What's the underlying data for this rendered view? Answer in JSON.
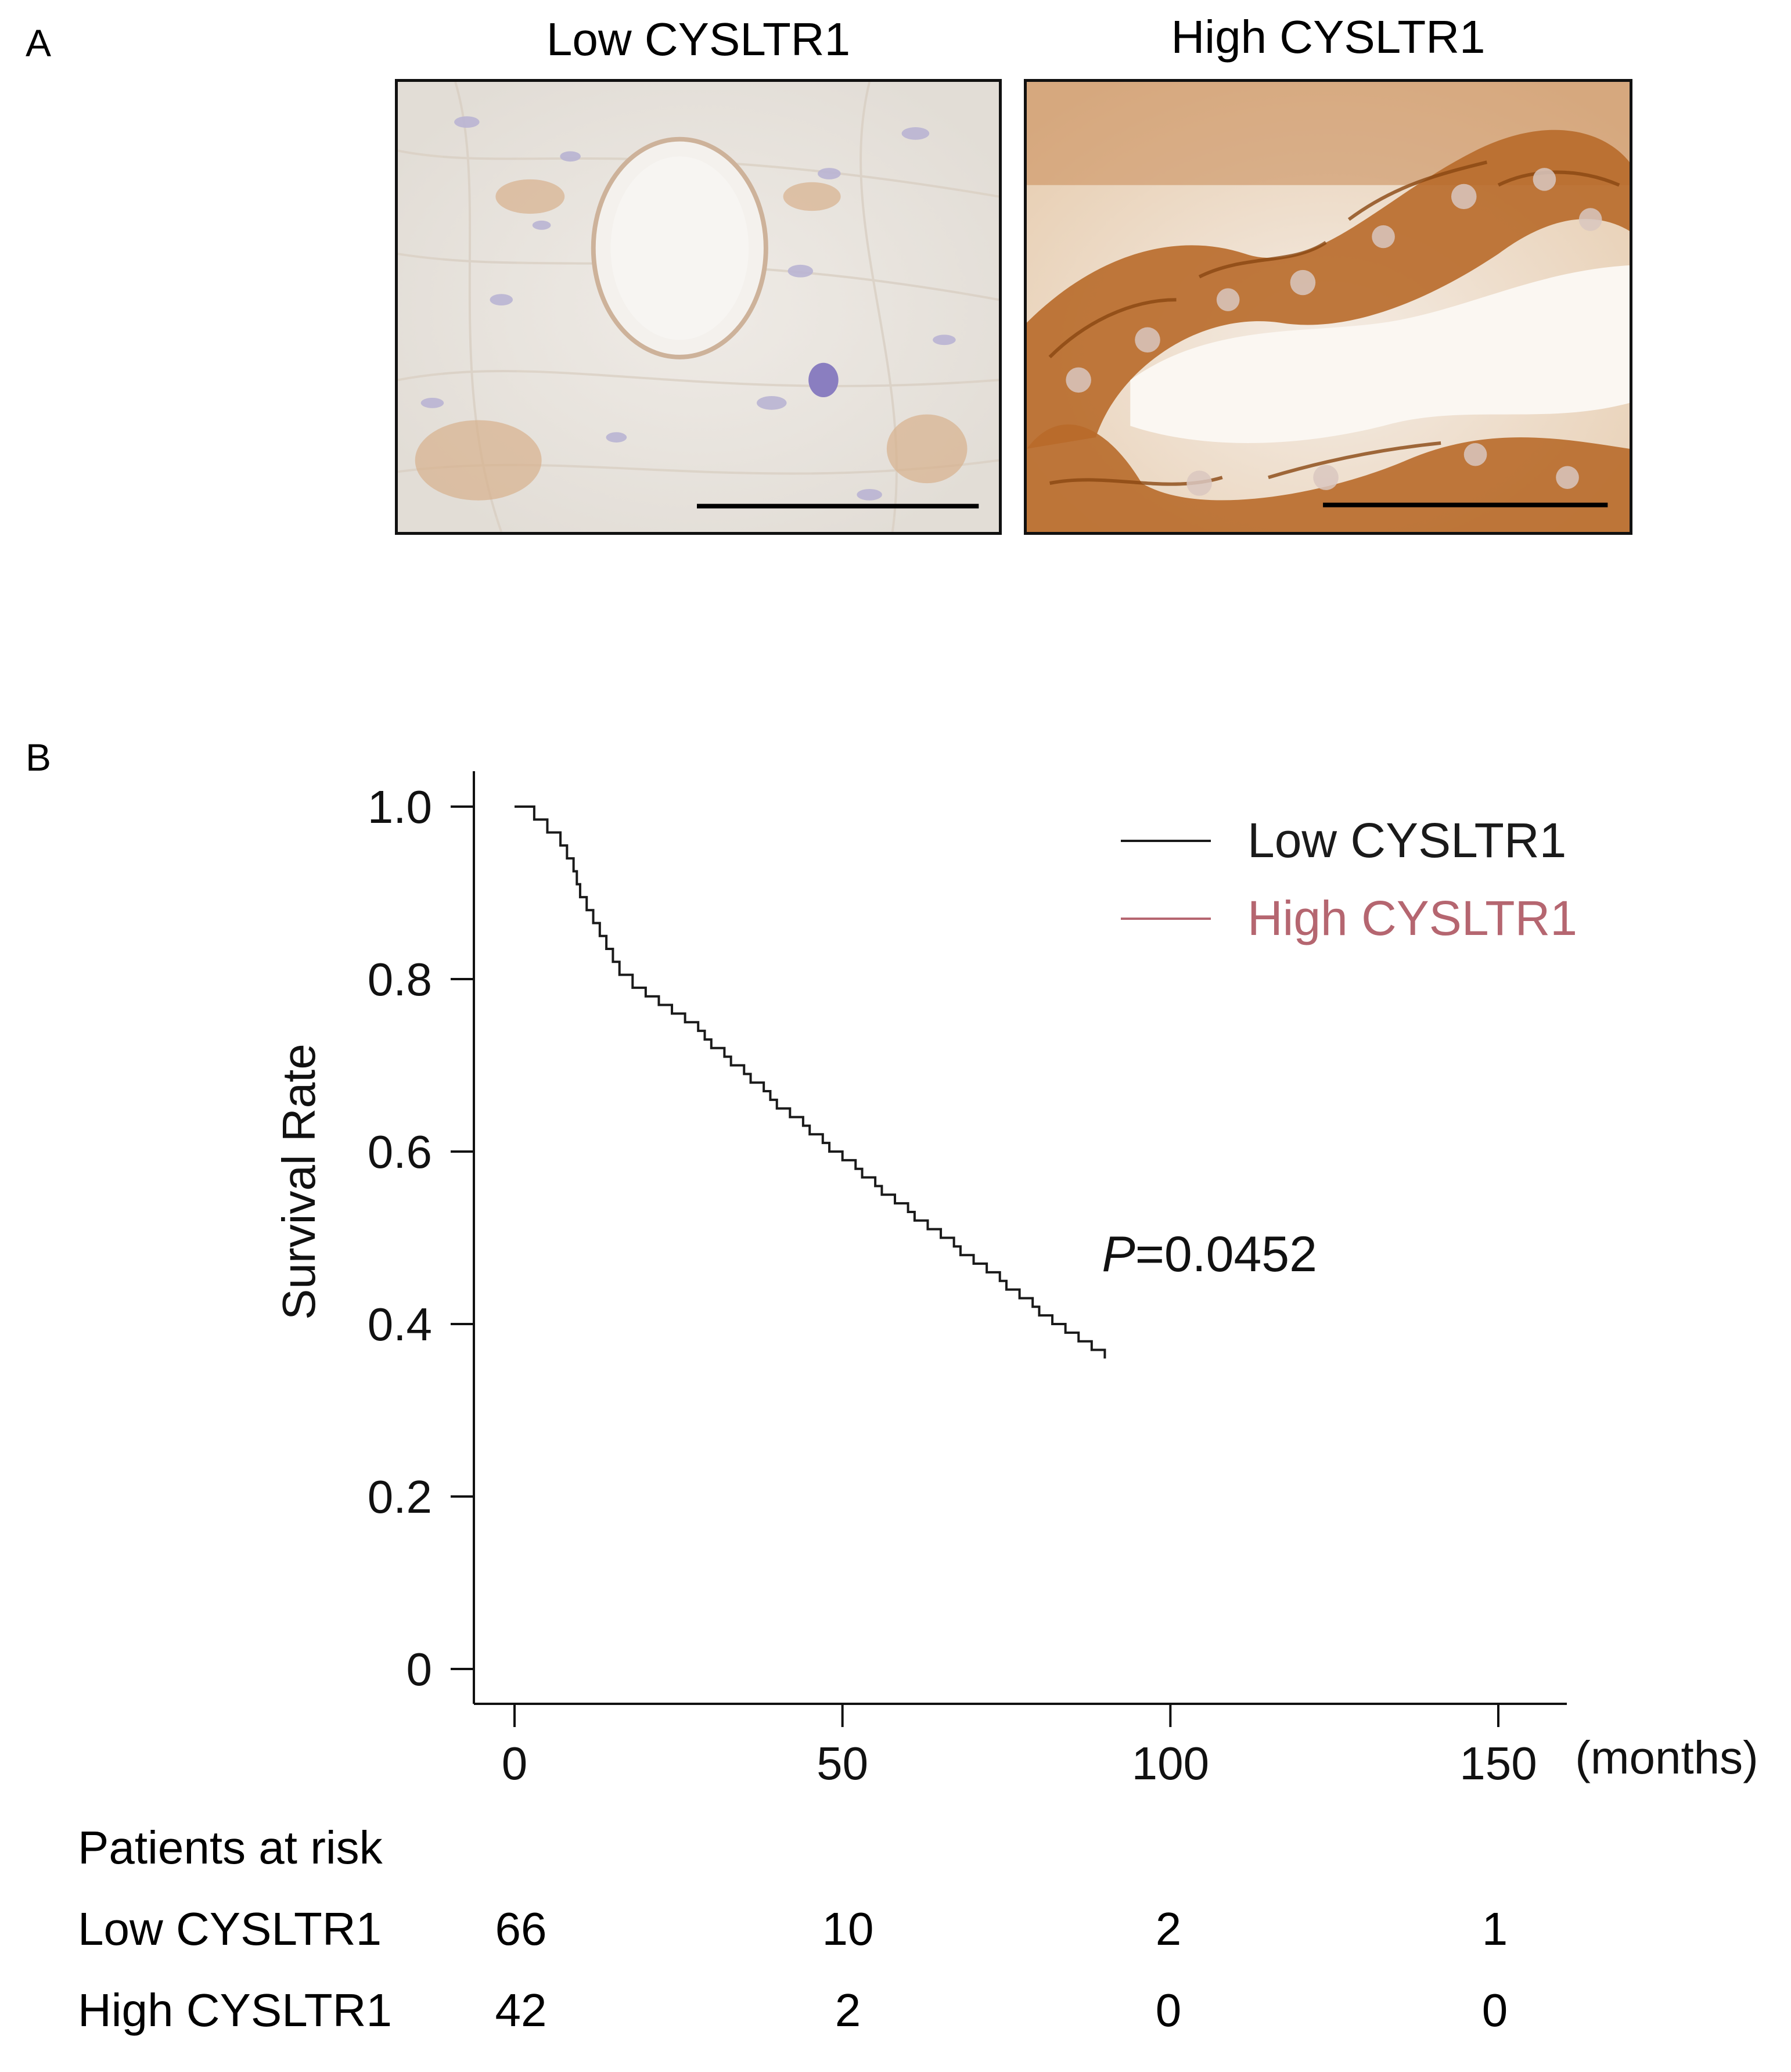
{
  "panel_a": {
    "label": "A",
    "images": [
      {
        "title": "Low CYSLTR1",
        "stain": "weak brown membranous staining"
      },
      {
        "title": "High CYSLTR1",
        "stain": "strong brown membranous staining"
      }
    ]
  },
  "panel_b": {
    "label": "B",
    "risk_table": {
      "title": "Patients at risk",
      "rows": [
        {
          "label": "Low CYSLTR1",
          "values": [
            "66",
            "10",
            "2",
            "1"
          ]
        },
        {
          "label": "High CYSLTR1",
          "values": [
            "42",
            "2",
            "0",
            "0"
          ]
        }
      ]
    }
  },
  "chart_data": {
    "type": "line",
    "subtype": "kaplan-meier",
    "title": "",
    "xlabel": "(months)",
    "ylabel": "Survival Rate",
    "xlim": [
      -6,
      160
    ],
    "ylim": [
      -0.04,
      1.04
    ],
    "xticks": [
      0,
      50,
      100,
      150
    ],
    "xtick_labels": [
      "0",
      "50",
      "100",
      "150"
    ],
    "yticks": [
      0,
      0.2,
      0.4,
      0.6,
      0.8,
      1.0
    ],
    "ytick_labels": [
      "0",
      "0.2",
      "0.4",
      "0.6",
      "0.8",
      "1.0"
    ],
    "annotation": {
      "prefix": "P",
      "text": "=0.0452",
      "x": 117,
      "y": 0.48
    },
    "legend": {
      "position": "top-right"
    },
    "series": [
      {
        "name": "Low CYSLTR1",
        "color": "#1a1a1a",
        "steps": [
          [
            0,
            1.0
          ],
          [
            3,
            0.985
          ],
          [
            5,
            0.97
          ],
          [
            7,
            0.955
          ],
          [
            8,
            0.94
          ],
          [
            9,
            0.925
          ],
          [
            9.5,
            0.91
          ],
          [
            10,
            0.895
          ],
          [
            11,
            0.88
          ],
          [
            12,
            0.865
          ],
          [
            13,
            0.85
          ],
          [
            14,
            0.835
          ],
          [
            15,
            0.82
          ],
          [
            16,
            0.805
          ],
          [
            18,
            0.79
          ],
          [
            20,
            0.78
          ],
          [
            22,
            0.77
          ],
          [
            24,
            0.76
          ],
          [
            26,
            0.75
          ],
          [
            28,
            0.74
          ],
          [
            29,
            0.73
          ],
          [
            30,
            0.72
          ],
          [
            32,
            0.71
          ],
          [
            33,
            0.7
          ],
          [
            35,
            0.69
          ],
          [
            36,
            0.68
          ],
          [
            38,
            0.67
          ],
          [
            39,
            0.66
          ],
          [
            40,
            0.65
          ],
          [
            42,
            0.64
          ],
          [
            44,
            0.63
          ],
          [
            45,
            0.62
          ],
          [
            47,
            0.61
          ],
          [
            48,
            0.6
          ],
          [
            50,
            0.59
          ],
          [
            52,
            0.58
          ],
          [
            53,
            0.57
          ],
          [
            55,
            0.56
          ],
          [
            56,
            0.55
          ],
          [
            58,
            0.54
          ],
          [
            60,
            0.53
          ],
          [
            61,
            0.52
          ],
          [
            63,
            0.51
          ],
          [
            65,
            0.5
          ],
          [
            67,
            0.49
          ],
          [
            68,
            0.48
          ],
          [
            70,
            0.47
          ],
          [
            72,
            0.46
          ],
          [
            74,
            0.45
          ],
          [
            75,
            0.44
          ],
          [
            77,
            0.43
          ],
          [
            79,
            0.42
          ],
          [
            80,
            0.41
          ],
          [
            82,
            0.4
          ],
          [
            84,
            0.39
          ],
          [
            86,
            0.38
          ],
          [
            88,
            0.37
          ],
          [
            90,
            0.36
          ]
        ],
        "censored": []
      },
      {
        "name": "High CYSLTR1",
        "color": "#b56670",
        "steps": [],
        "censored": []
      }
    ]
  }
}
